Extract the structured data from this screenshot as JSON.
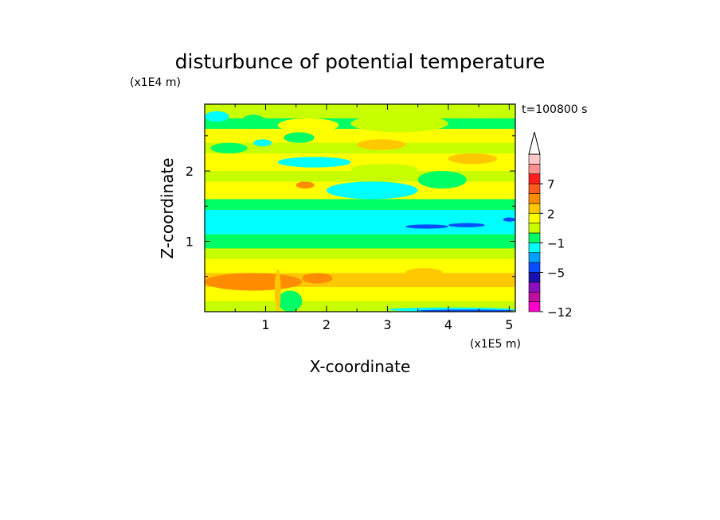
{
  "chart_data": {
    "type": "heatmap",
    "title": "disturbunce of potential temperature",
    "xlabel": "X-coordinate",
    "ylabel": "Z-coordinate",
    "x_unit": "(x1E5 m)",
    "y_unit": "(x1E4 m)",
    "time_label": "t=100800 s",
    "xlim": [
      0,
      5.1
    ],
    "ylim": [
      0,
      2.95
    ],
    "x_ticks": [
      1,
      2,
      3,
      4,
      5
    ],
    "y_ticks": [
      1,
      2
    ],
    "x_tick_labels": [
      "1",
      "2",
      "3",
      "4",
      "5"
    ],
    "y_tick_labels": [
      "1",
      "2"
    ],
    "colorbar": {
      "levels": [
        -12,
        -10,
        -8,
        -6,
        -5,
        -3,
        -2,
        -1,
        0,
        1,
        2,
        3,
        5,
        7,
        8,
        9,
        11
      ],
      "labels": [
        {
          "value": 7,
          "text": "7"
        },
        {
          "value": 2,
          "text": "2"
        },
        {
          "value": -1,
          "text": "−1"
        },
        {
          "value": -5,
          "text": "−5"
        },
        {
          "value": -12,
          "text": "−12"
        }
      ],
      "colors": [
        "#ff00c8",
        "#c00fa0",
        "#8a0fc0",
        "#1a10b0",
        "#0a4cff",
        "#00a0ff",
        "#00ffff",
        "#00ff64",
        "#c8ff00",
        "#ffff00",
        "#ffc800",
        "#ff8c00",
        "#ff5a1e",
        "#ff1e1e",
        "#ff9090",
        "#ffc8c8"
      ],
      "extend": "max",
      "extend_color": "#ffffff"
    },
    "bands": [
      {
        "z0": 0.0,
        "z1": 0.15,
        "value": 0.5
      },
      {
        "z0": 0.15,
        "z1": 0.35,
        "value": 1.5
      },
      {
        "z0": 0.35,
        "z1": 0.55,
        "value": 2.5
      },
      {
        "z0": 0.55,
        "z1": 0.75,
        "value": 1.5
      },
      {
        "z0": 0.75,
        "z1": 0.9,
        "value": 0.5
      },
      {
        "z0": 0.9,
        "z1": 1.1,
        "value": -0.5
      },
      {
        "z0": 1.1,
        "z1": 1.45,
        "value": -1.5
      },
      {
        "z0": 1.45,
        "z1": 1.6,
        "value": -0.5
      },
      {
        "z0": 1.6,
        "z1": 1.85,
        "value": 1.5
      },
      {
        "z0": 1.85,
        "z1": 2.0,
        "value": 0.5
      },
      {
        "z0": 2.0,
        "z1": 2.25,
        "value": 1.5
      },
      {
        "z0": 2.25,
        "z1": 2.4,
        "value": 0.5
      },
      {
        "z0": 2.4,
        "z1": 2.6,
        "value": 1.5
      },
      {
        "z0": 2.6,
        "z1": 2.75,
        "value": -0.5
      },
      {
        "z0": 2.75,
        "z1": 2.95,
        "value": 0.5
      }
    ],
    "blobs": [
      {
        "x0": 0.0,
        "x1": 1.6,
        "z0": 0.3,
        "z1": 0.55,
        "value": 4
      },
      {
        "x0": 1.6,
        "x1": 2.1,
        "z0": 0.4,
        "z1": 0.55,
        "value": 4
      },
      {
        "x0": 3.3,
        "x1": 3.9,
        "z0": 0.5,
        "z1": 0.62,
        "value": 2.5
      },
      {
        "x0": 4.5,
        "x1": 5.1,
        "z0": 0.4,
        "z1": 0.55,
        "value": 2.5
      },
      {
        "x0": 1.2,
        "x1": 1.6,
        "z0": 0.0,
        "z1": 0.3,
        "value": -0.5
      },
      {
        "x0": 3.0,
        "x1": 5.1,
        "z0": 0.0,
        "z1": 0.06,
        "value": -1.5
      },
      {
        "x0": 3.5,
        "x1": 5.1,
        "z0": 0.0,
        "z1": 0.03,
        "value": -4
      },
      {
        "x0": 3.3,
        "x1": 4.0,
        "z0": 1.18,
        "z1": 1.24,
        "value": -4
      },
      {
        "x0": 4.0,
        "x1": 4.6,
        "z0": 1.2,
        "z1": 1.26,
        "value": -4
      },
      {
        "x0": 4.9,
        "x1": 5.1,
        "z0": 1.28,
        "z1": 1.34,
        "value": -4
      },
      {
        "x0": 3.2,
        "x1": 3.4,
        "z0": 1.7,
        "z1": 1.76,
        "value": -4
      },
      {
        "x0": 1.5,
        "x1": 1.8,
        "z0": 1.75,
        "z1": 1.85,
        "value": 4
      },
      {
        "x0": 2.0,
        "x1": 3.5,
        "z0": 1.6,
        "z1": 1.85,
        "value": -1.5
      },
      {
        "x0": 3.5,
        "x1": 4.3,
        "z0": 1.75,
        "z1": 2.0,
        "value": -0.5
      },
      {
        "x0": 1.2,
        "x1": 2.4,
        "z0": 2.05,
        "z1": 2.2,
        "value": -1.5
      },
      {
        "x0": 2.4,
        "x1": 3.5,
        "z0": 1.95,
        "z1": 2.1,
        "value": 0.5
      },
      {
        "x0": 4.0,
        "x1": 4.8,
        "z0": 2.1,
        "z1": 2.25,
        "value": 2.5
      },
      {
        "x0": 2.5,
        "x1": 3.3,
        "z0": 2.3,
        "z1": 2.45,
        "value": 2.5
      },
      {
        "x0": 0.1,
        "x1": 0.7,
        "z0": 2.25,
        "z1": 2.4,
        "value": -0.5
      },
      {
        "x0": 0.8,
        "x1": 1.1,
        "z0": 2.35,
        "z1": 2.45,
        "value": -1.5
      },
      {
        "x0": 1.3,
        "x1": 1.8,
        "z0": 2.4,
        "z1": 2.55,
        "value": -0.5
      },
      {
        "x0": 0.0,
        "x1": 0.4,
        "z0": 2.7,
        "z1": 2.85,
        "value": -1.5
      },
      {
        "x0": 0.6,
        "x1": 1.0,
        "z0": 2.6,
        "z1": 2.8,
        "value": -0.5
      },
      {
        "x0": 1.2,
        "x1": 2.2,
        "z0": 2.55,
        "z1": 2.75,
        "value": 1.5
      },
      {
        "x0": 2.4,
        "x1": 4.0,
        "z0": 2.55,
        "z1": 2.8,
        "value": 0.5
      },
      {
        "x0": 4.0,
        "x1": 5.1,
        "z0": 2.75,
        "z1": 2.95,
        "value": 0.5
      },
      {
        "x0": 1.15,
        "x1": 1.25,
        "z0": 0.0,
        "z1": 0.6,
        "value": 2.5
      }
    ]
  }
}
